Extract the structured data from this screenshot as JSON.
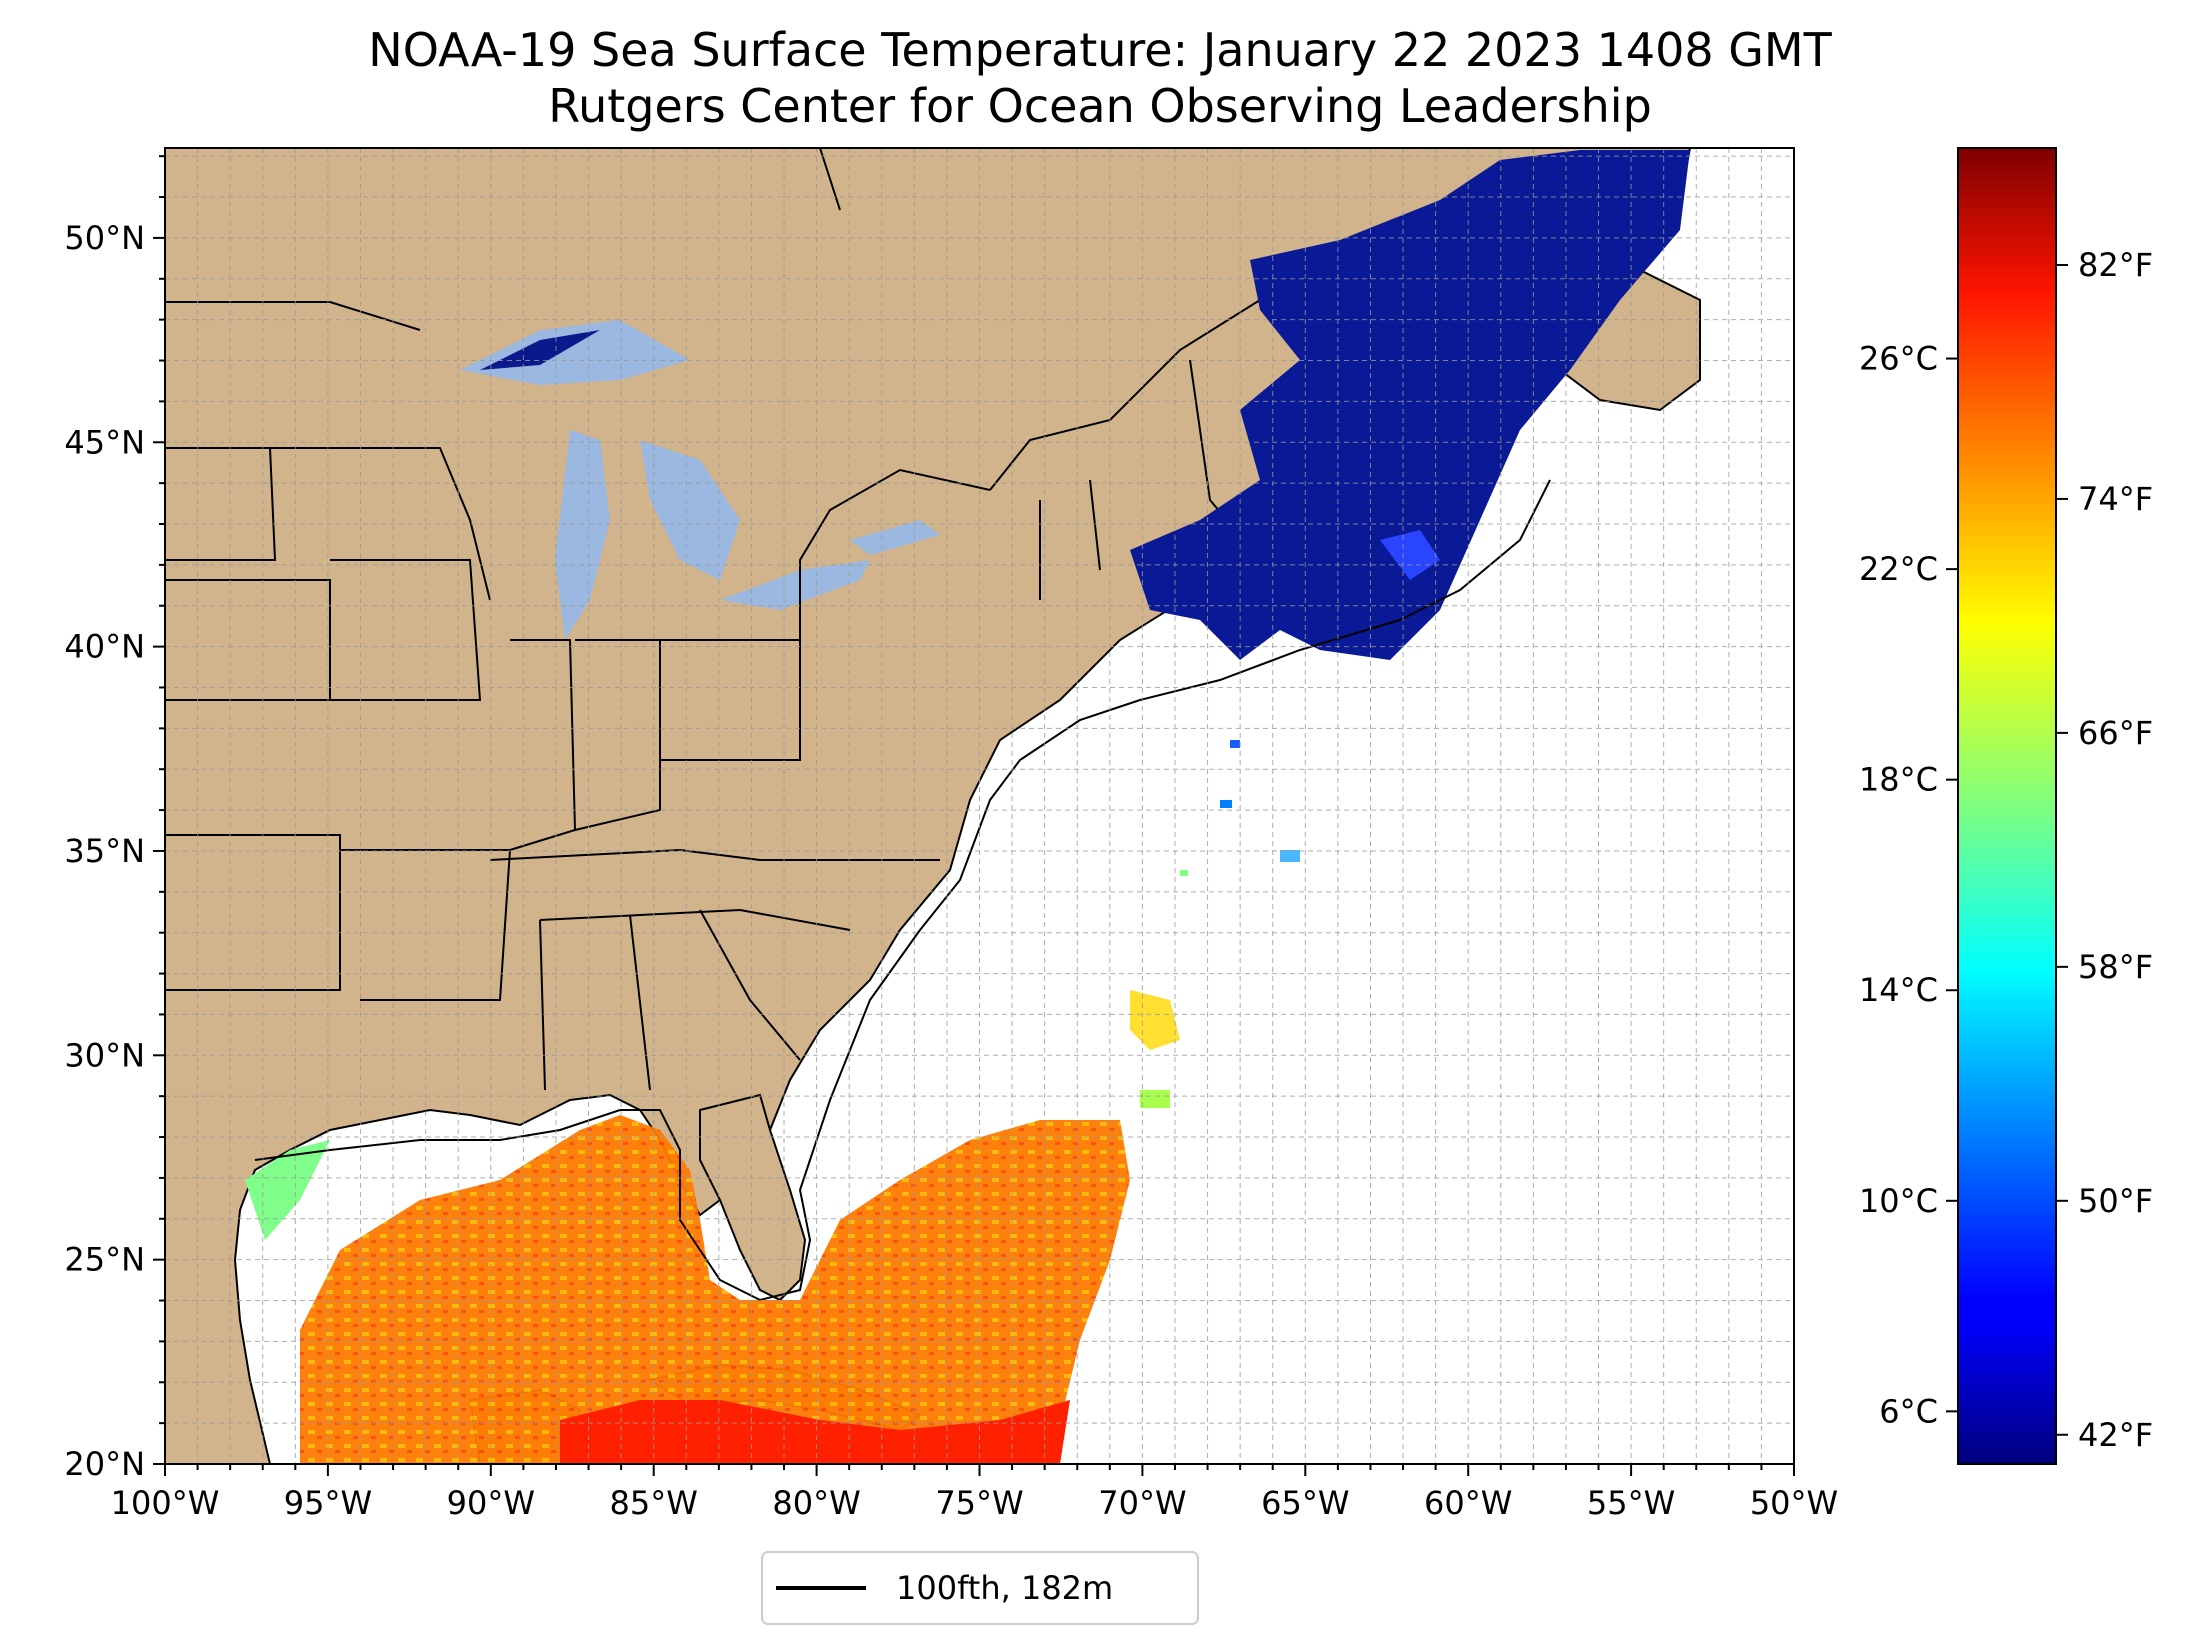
{
  "title": {
    "line1": "NOAA-19 Sea Surface Temperature: January 22 2023 1408 GMT",
    "line2": "Rutgers Center for Ocean Observing Leadership"
  },
  "map": {
    "lon_range": [
      -100,
      -50
    ],
    "lat_range": [
      20,
      52.2
    ],
    "x_ticks": [
      {
        "lon": -100,
        "label": "100°W"
      },
      {
        "lon": -95,
        "label": "95°W"
      },
      {
        "lon": -90,
        "label": "90°W"
      },
      {
        "lon": -85,
        "label": "85°W"
      },
      {
        "lon": -80,
        "label": "80°W"
      },
      {
        "lon": -75,
        "label": "75°W"
      },
      {
        "lon": -70,
        "label": "70°W"
      },
      {
        "lon": -65,
        "label": "65°W"
      },
      {
        "lon": -60,
        "label": "60°W"
      },
      {
        "lon": -55,
        "label": "55°W"
      },
      {
        "lon": -50,
        "label": "50°W"
      }
    ],
    "y_ticks": [
      {
        "lat": 20,
        "label": "20°N"
      },
      {
        "lat": 25,
        "label": "25°N"
      },
      {
        "lat": 30,
        "label": "30°N"
      },
      {
        "lat": 35,
        "label": "35°N"
      },
      {
        "lat": 40,
        "label": "40°N"
      },
      {
        "lat": 45,
        "label": "45°N"
      },
      {
        "lat": 50,
        "label": "50°N"
      }
    ],
    "gridlines": true,
    "land_color": "#d2b48c",
    "lake_color": "#9bb8e0",
    "ocean_color": "#ffffff"
  },
  "colorbar": {
    "colormap": "jet",
    "range_c": [
      5,
      30
    ],
    "celsius_ticks": [
      {
        "value": 6,
        "label": "6°C"
      },
      {
        "value": 10,
        "label": "10°C"
      },
      {
        "value": 14,
        "label": "14°C"
      },
      {
        "value": 18,
        "label": "18°C"
      },
      {
        "value": 22,
        "label": "22°C"
      },
      {
        "value": 26,
        "label": "26°C"
      }
    ],
    "fahrenheit_ticks": [
      {
        "value": 42,
        "label": "42°F"
      },
      {
        "value": 50,
        "label": "50°F"
      },
      {
        "value": 58,
        "label": "58°F"
      },
      {
        "value": 66,
        "label": "66°F"
      },
      {
        "value": 74,
        "label": "74°F"
      },
      {
        "value": 82,
        "label": "82°F"
      }
    ]
  },
  "legend": {
    "label": "100fth, 182m",
    "line_color": "#000000"
  }
}
